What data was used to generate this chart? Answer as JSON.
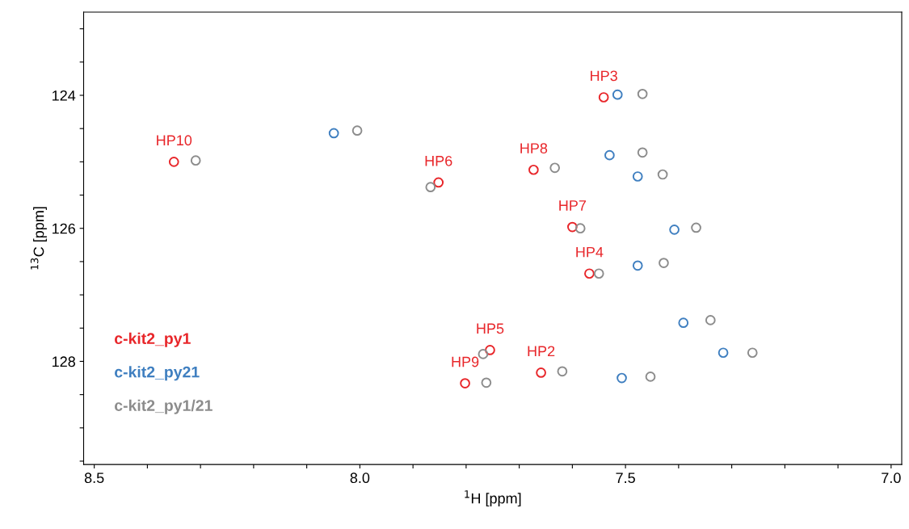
{
  "chart_data": {
    "type": "scatter",
    "xlabel": "$^{1}$H [ppm]",
    "ylabel": "$^{13}$C [ppm]",
    "xlim": [
      8.52,
      6.98
    ],
    "ylim": [
      129.55,
      122.75
    ],
    "xticks": [
      {
        "value": 8.5,
        "label": "8.5"
      },
      {
        "value": 8.4,
        "label": null
      },
      {
        "value": 8.3,
        "label": null
      },
      {
        "value": 8.2,
        "label": null
      },
      {
        "value": 8.1,
        "label": null
      },
      {
        "value": 8.0,
        "label": "8.0"
      },
      {
        "value": 7.9,
        "label": null
      },
      {
        "value": 7.8,
        "label": null
      },
      {
        "value": 7.7,
        "label": null
      },
      {
        "value": 7.6,
        "label": null
      },
      {
        "value": 7.5,
        "label": "7.5"
      },
      {
        "value": 7.4,
        "label": null
      },
      {
        "value": 7.3,
        "label": null
      },
      {
        "value": 7.2,
        "label": null
      },
      {
        "value": 7.1,
        "label": null
      },
      {
        "value": 7.0,
        "label": "7.0"
      }
    ],
    "yticks": [
      {
        "value": 123,
        "label": null
      },
      {
        "value": 123.5,
        "label": null
      },
      {
        "value": 124,
        "label": "124"
      },
      {
        "value": 124.5,
        "label": null
      },
      {
        "value": 125,
        "label": null
      },
      {
        "value": 125.5,
        "label": null
      },
      {
        "value": 126,
        "label": "126"
      },
      {
        "value": 126.5,
        "label": null
      },
      {
        "value": 127,
        "label": null
      },
      {
        "value": 127.5,
        "label": null
      },
      {
        "value": 128,
        "label": "128"
      },
      {
        "value": 128.5,
        "label": null
      },
      {
        "value": 129,
        "label": null
      },
      {
        "value": 129.5,
        "label": null
      }
    ],
    "grid": false,
    "legend": "bottom left",
    "marker": "circle",
    "series": [
      {
        "name": "c-kit2_py1",
        "color": "#e8262a",
        "x": [
          8.35,
          7.852,
          7.673,
          7.541,
          7.6,
          7.568,
          7.755,
          7.659,
          7.802
        ],
        "values": [
          125.0,
          125.31,
          125.12,
          124.03,
          125.98,
          126.68,
          127.83,
          128.17,
          128.33
        ]
      },
      {
        "name": "c-kit2_py21",
        "color": "#3f7fc0",
        "x": [
          8.049,
          7.515,
          7.53,
          7.477,
          7.408,
          7.477,
          7.391,
          7.316,
          7.507
        ],
        "values": [
          124.57,
          123.99,
          124.9,
          125.22,
          126.02,
          126.56,
          127.42,
          127.87,
          128.25
        ]
      },
      {
        "name": "c-kit2_py1/21",
        "color": "#8c8c8c",
        "x": [
          8.309,
          8.005,
          7.867,
          7.468,
          7.633,
          7.468,
          7.43,
          7.585,
          7.367,
          7.55,
          7.428,
          7.34,
          7.261,
          7.453,
          7.768,
          7.619,
          7.762
        ],
        "values": [
          124.98,
          124.53,
          125.38,
          123.98,
          125.09,
          124.86,
          125.19,
          126.0,
          125.99,
          126.68,
          126.52,
          127.38,
          127.87,
          128.23,
          127.89,
          128.15,
          128.32
        ]
      }
    ],
    "annotations": [
      {
        "text": "HP10",
        "x": 8.35,
        "y": 125.0
      },
      {
        "text": "HP6",
        "x": 7.852,
        "y": 125.31
      },
      {
        "text": "HP8",
        "x": 7.673,
        "y": 125.12
      },
      {
        "text": "HP3",
        "x": 7.541,
        "y": 124.03
      },
      {
        "text": "HP7",
        "x": 7.6,
        "y": 125.98
      },
      {
        "text": "HP4",
        "x": 7.568,
        "y": 126.68
      },
      {
        "text": "HP5",
        "x": 7.755,
        "y": 127.83
      },
      {
        "text": "HP2",
        "x": 7.659,
        "y": 128.17
      },
      {
        "text": "HP9",
        "x": 7.802,
        "y": 128.33
      }
    ]
  }
}
